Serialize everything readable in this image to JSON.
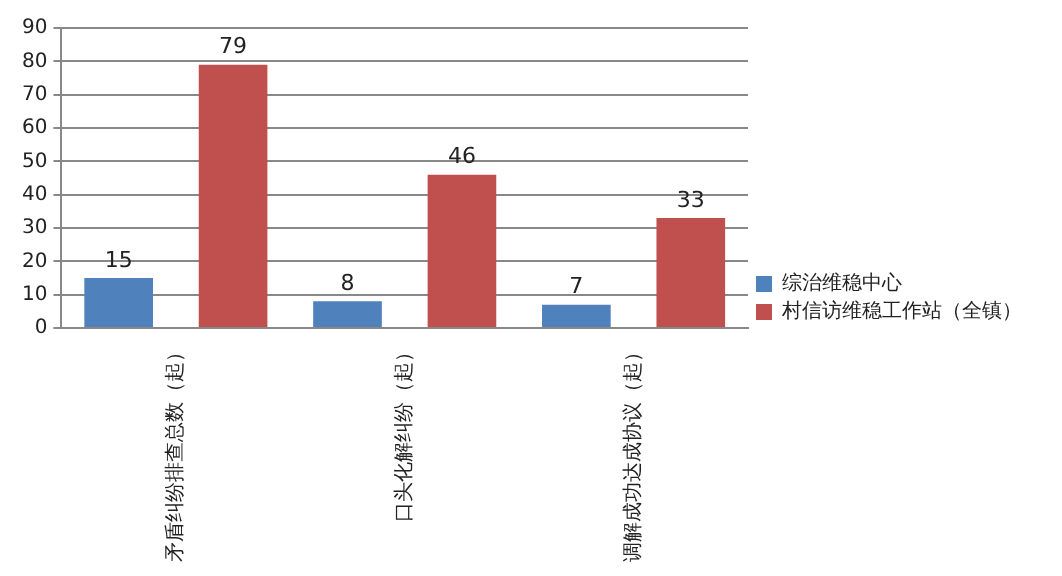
{
  "chart_data": {
    "type": "bar",
    "categories": [
      "矛盾纠纷排查总数（起）",
      "口头化解纠纷（起）",
      "调解成功达成协议（起）"
    ],
    "series": [
      {
        "name": "综治维稳中心",
        "color": "#4f81bd",
        "values": [
          15,
          8,
          7
        ]
      },
      {
        "name": "村信访维稳工作站（全镇）",
        "color": "#c0504d",
        "values": [
          79,
          46,
          33
        ]
      }
    ],
    "ylim": [
      0,
      90
    ],
    "yticks": [
      0,
      10,
      20,
      30,
      40,
      50,
      60,
      70,
      80,
      90
    ],
    "grid": "y",
    "legend": "right",
    "data_labels": true
  }
}
